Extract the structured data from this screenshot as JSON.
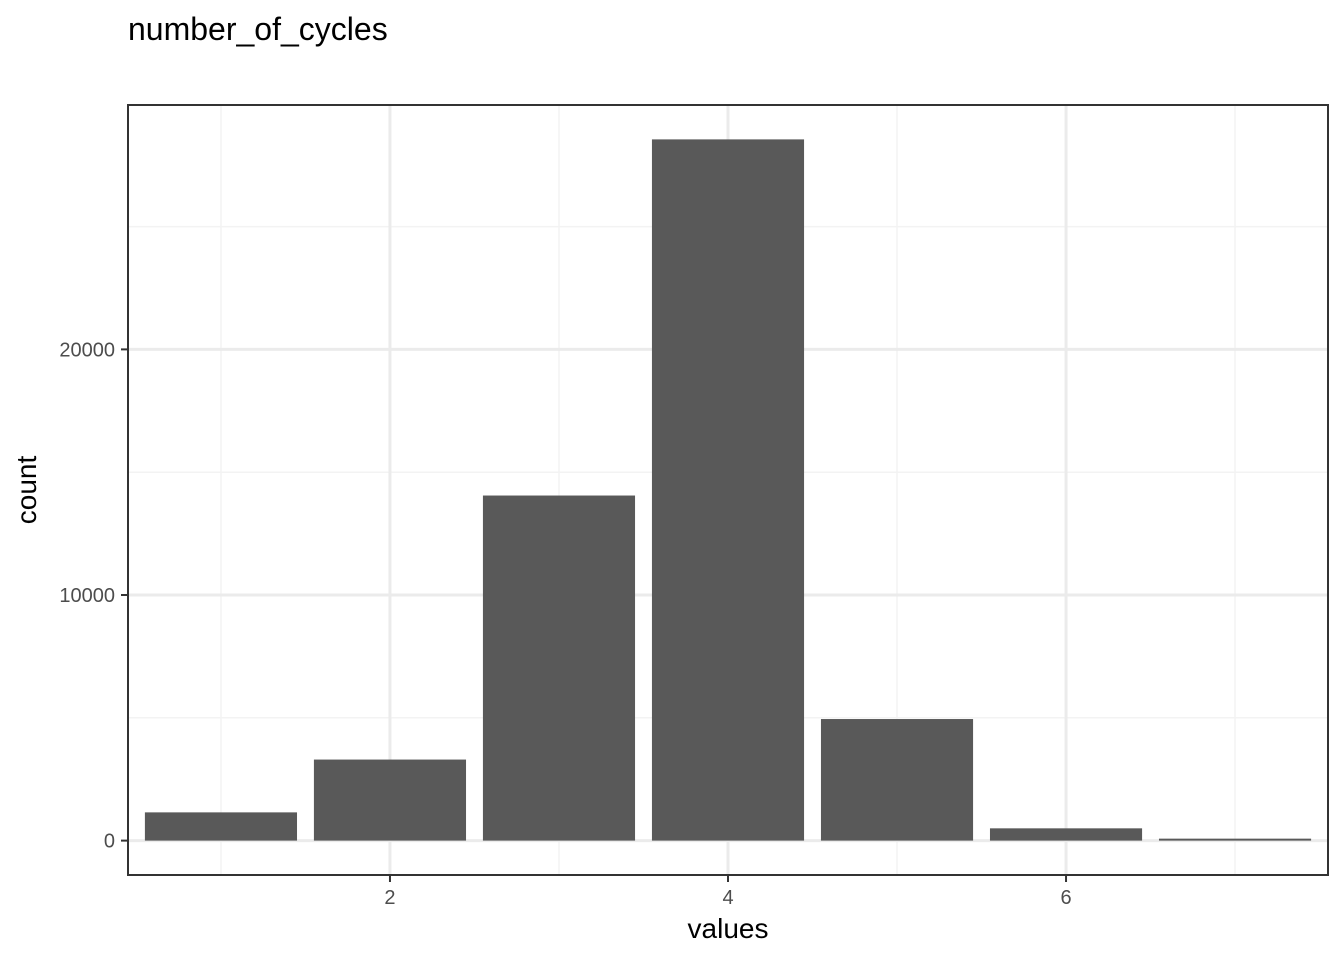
{
  "chart_data": {
    "type": "bar",
    "title": "number_of_cycles",
    "xlabel": "values",
    "ylabel": "count",
    "x": [
      1,
      2,
      3,
      4,
      5,
      6,
      7
    ],
    "values": [
      1150,
      3300,
      14050,
      28550,
      4950,
      500,
      80
    ],
    "xlim": [
      0.45,
      7.55
    ],
    "ylim": [
      -1400,
      29950
    ],
    "x_ticks": [
      2,
      4,
      6
    ],
    "y_ticks": [
      0,
      10000,
      20000
    ],
    "x_tick_labels": [
      "2",
      "4",
      "6"
    ],
    "y_tick_labels": [
      "0",
      "10000",
      "20000"
    ],
    "grid": true,
    "legend": "none",
    "colors": {
      "bar": "#595959",
      "grid_major": "#ebebeb",
      "grid_minor": "#f3f3f3",
      "panel_border": "#333333",
      "background": "#ffffff"
    }
  }
}
